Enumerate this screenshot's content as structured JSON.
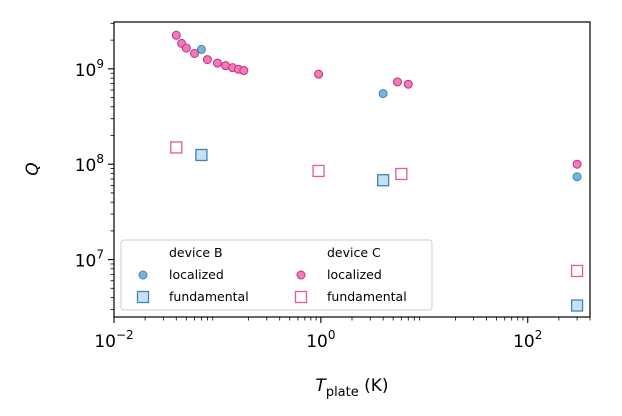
{
  "chart_data": {
    "type": "scatter",
    "x_scale": "log",
    "y_scale": "log",
    "xlim": [
      0.01,
      400
    ],
    "ylim": [
      2500000,
      3100000000
    ],
    "xlabel": {
      "symbol": "T",
      "subscript": "plate",
      "unit": "(K)"
    },
    "ylabel": "Q",
    "x_ticks": [
      {
        "value": 0.01,
        "base": "10",
        "exp": "−2"
      },
      {
        "value": 1,
        "base": "10",
        "exp": "0"
      },
      {
        "value": 100,
        "base": "10",
        "exp": "2"
      }
    ],
    "y_ticks": [
      {
        "value": 10000000,
        "base": "10",
        "exp": "7"
      },
      {
        "value": 100000000,
        "base": "10",
        "exp": "8"
      },
      {
        "value": 1000000000,
        "base": "10",
        "exp": "9"
      }
    ],
    "grid": false,
    "legend_position": "lower-left",
    "series": [
      {
        "name": "localized",
        "group": "device B",
        "marker": "circle",
        "fill": "#7ab3d8",
        "stroke": "#3a86b8",
        "points": [
          {
            "x": 0.07,
            "y": 1600000000
          },
          {
            "x": 4.0,
            "y": 550000000
          },
          {
            "x": 300,
            "y": 74000000
          }
        ]
      },
      {
        "name": "fundamental",
        "group": "device B",
        "marker": "square",
        "fill": "#c5e1f5",
        "stroke": "#3a86b8",
        "points": [
          {
            "x": 0.07,
            "y": 125000000
          },
          {
            "x": 4.0,
            "y": 68000000
          },
          {
            "x": 300,
            "y": 3300000
          }
        ]
      },
      {
        "name": "localized",
        "group": "device C",
        "marker": "circle",
        "fill": "#f07bb8",
        "stroke": "#c2307e",
        "points": [
          {
            "x": 0.04,
            "y": 2250000000
          },
          {
            "x": 0.045,
            "y": 1850000000
          },
          {
            "x": 0.05,
            "y": 1650000000
          },
          {
            "x": 0.06,
            "y": 1450000000
          },
          {
            "x": 0.08,
            "y": 1250000000
          },
          {
            "x": 0.1,
            "y": 1150000000
          },
          {
            "x": 0.12,
            "y": 1080000000
          },
          {
            "x": 0.14,
            "y": 1030000000
          },
          {
            "x": 0.16,
            "y": 990000000
          },
          {
            "x": 0.18,
            "y": 960000000
          },
          {
            "x": 0.95,
            "y": 880000000
          },
          {
            "x": 5.5,
            "y": 730000000
          },
          {
            "x": 7.0,
            "y": 690000000
          },
          {
            "x": 300,
            "y": 100000000
          }
        ]
      },
      {
        "name": "fundamental",
        "group": "device C",
        "marker": "square",
        "fill": "none",
        "stroke": "#e05a9f",
        "points": [
          {
            "x": 0.04,
            "y": 150000000
          },
          {
            "x": 0.95,
            "y": 85000000
          },
          {
            "x": 6.0,
            "y": 79000000
          },
          {
            "x": 300,
            "y": 7600000
          }
        ]
      }
    ],
    "legend": {
      "group_titles": [
        "device B",
        "device C"
      ],
      "entries": [
        {
          "label": "localized",
          "series": 0
        },
        {
          "label": "fundamental",
          "series": 1
        },
        {
          "label": "localized",
          "series": 2
        },
        {
          "label": "fundamental",
          "series": 3
        }
      ]
    }
  }
}
